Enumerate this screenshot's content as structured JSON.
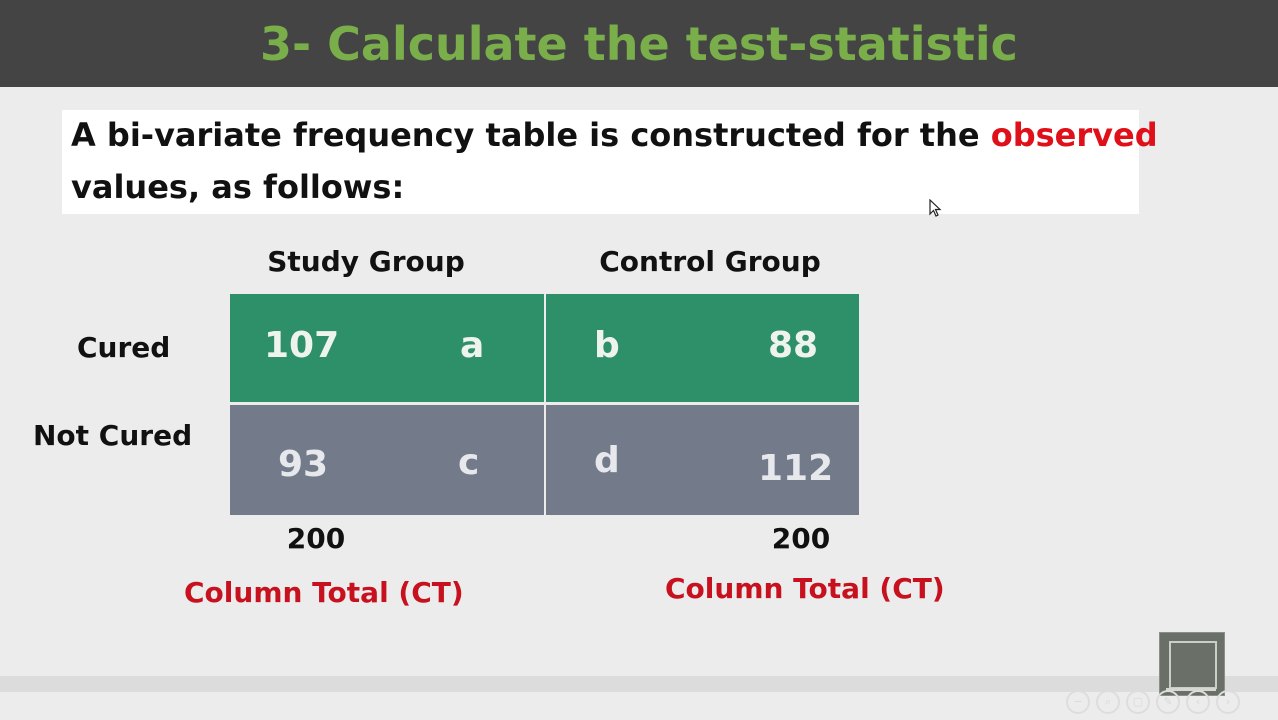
{
  "slide": {
    "title": "3- Calculate the test-statistic",
    "intro_part1": "A bi-variate frequency table is constructed for the ",
    "intro_highlight": "observed",
    "intro_line2": "values, as follows:"
  },
  "table": {
    "columns": [
      "Study Group",
      "Control Group"
    ],
    "rows": [
      "Cured",
      "Not Cured"
    ],
    "cells": [
      [
        {
          "value": "107",
          "letter": "a"
        },
        {
          "value": "88",
          "letter": "b"
        }
      ],
      [
        {
          "value": "93",
          "letter": "c"
        },
        {
          "value": "112",
          "letter": "d"
        }
      ]
    ],
    "totals": [
      "200",
      "200"
    ],
    "total_label": "Column Total (CT)"
  },
  "colors": {
    "title": "#79ae4a",
    "highlight": "#e0101a",
    "cured_row": "#2e9069",
    "not_cured_row": "#737b8b",
    "total_label": "#c8111e"
  },
  "toolbar": {
    "icons": [
      "zoom-out-icon",
      "search-icon",
      "copy-icon",
      "edit-icon",
      "prev-icon",
      "next-icon"
    ]
  }
}
